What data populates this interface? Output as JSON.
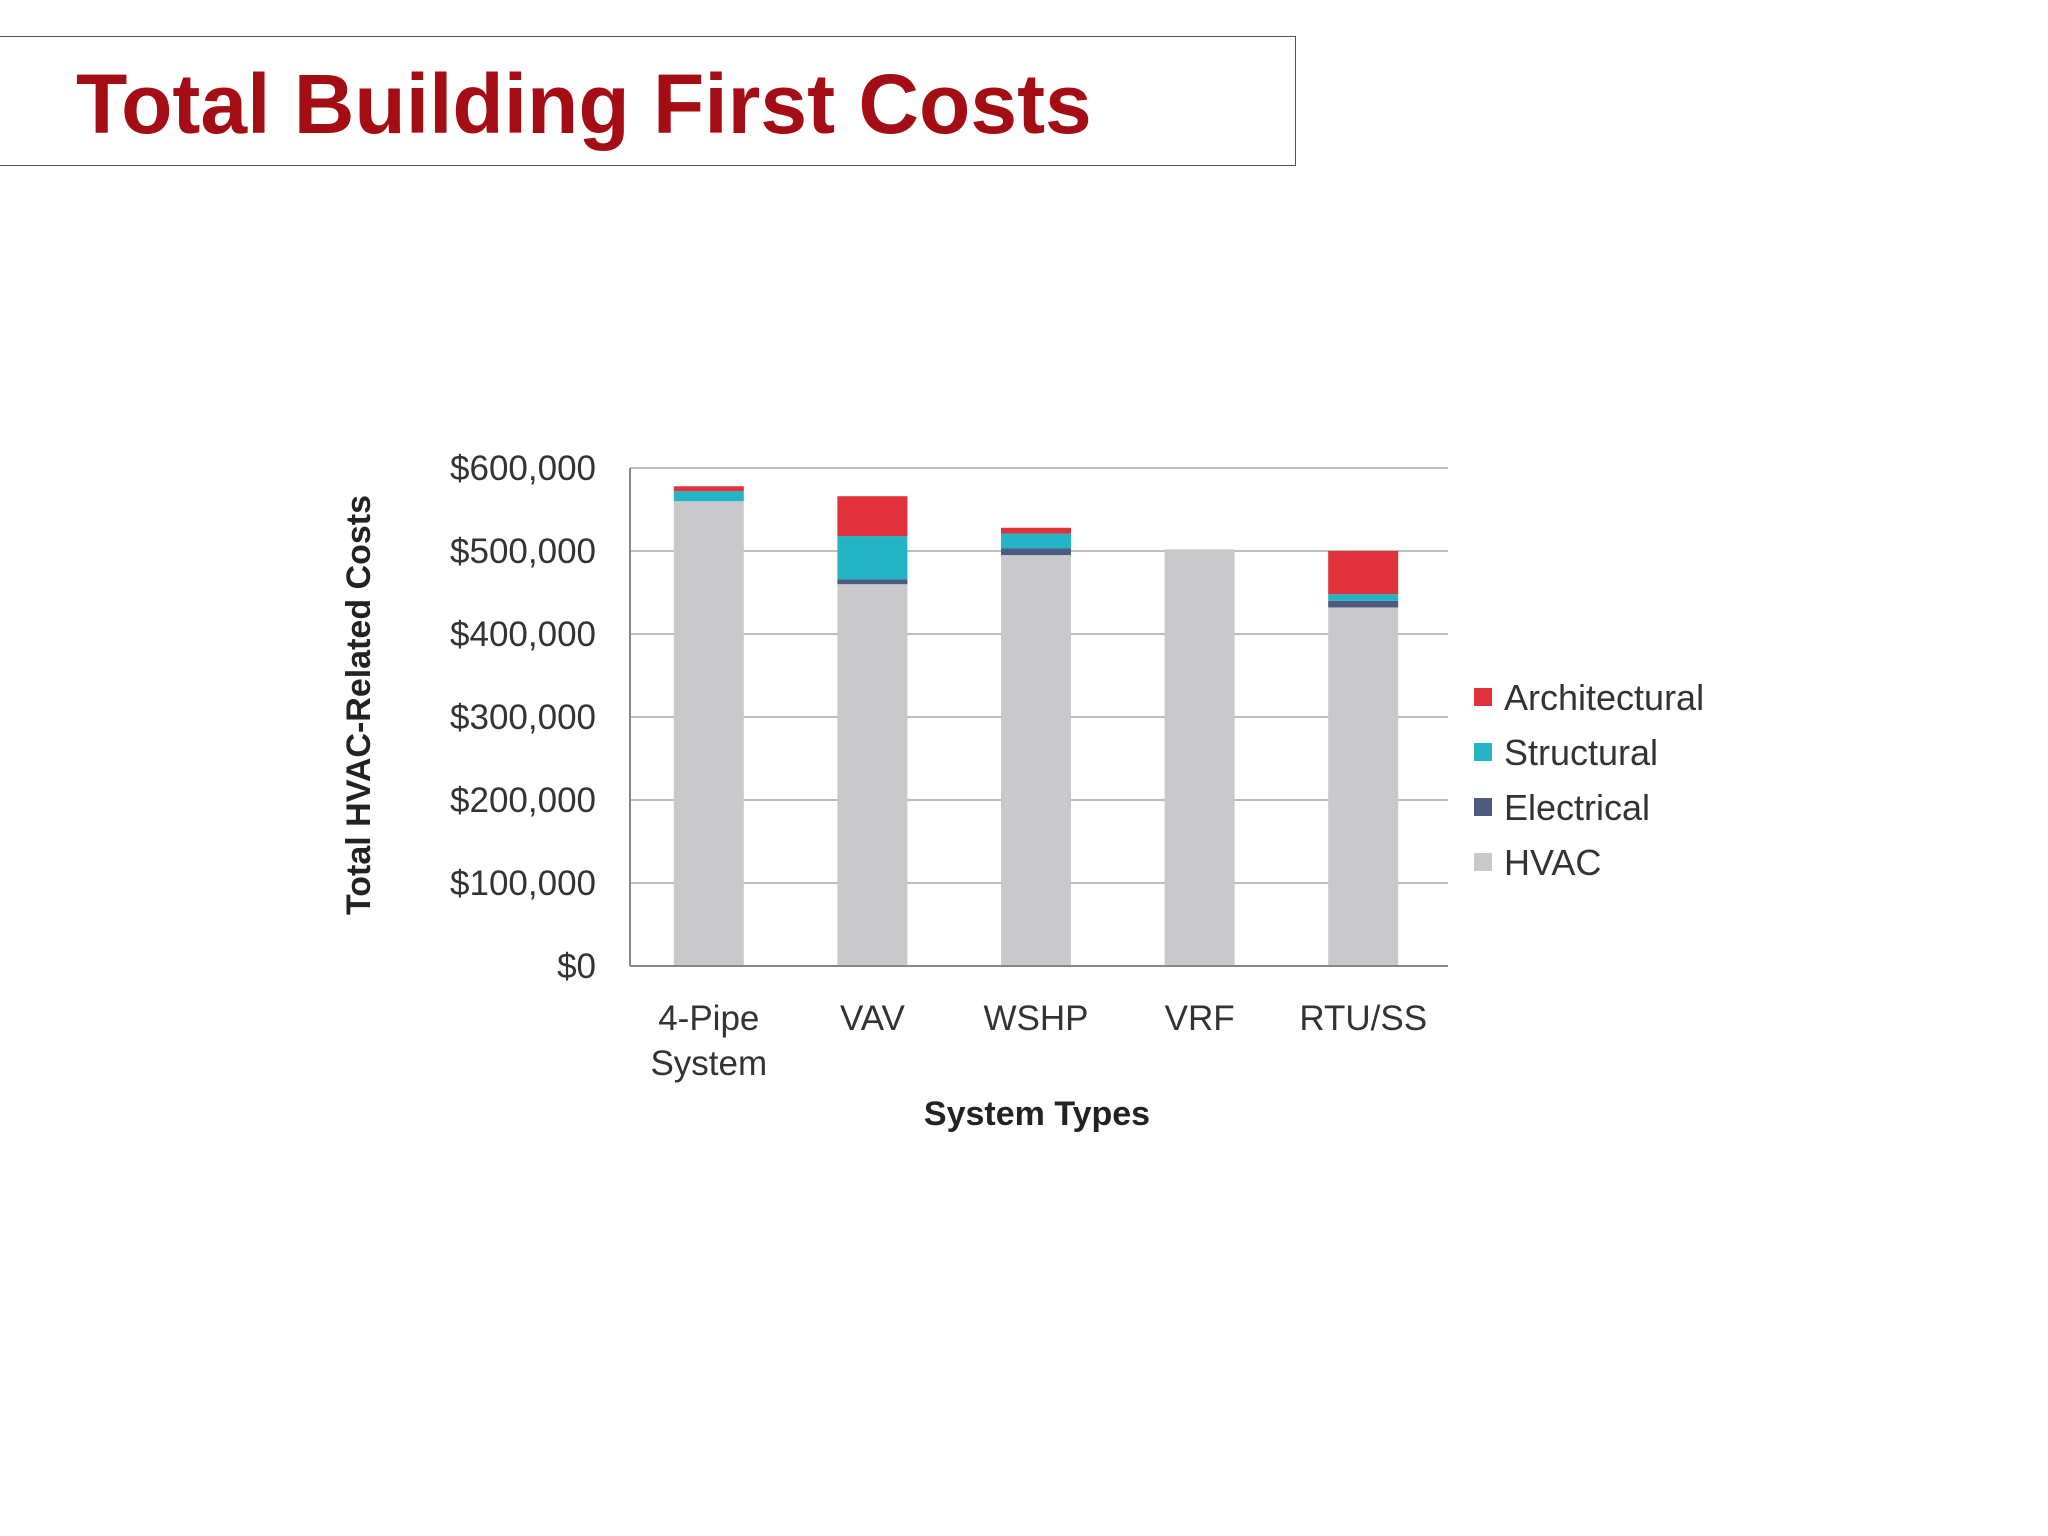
{
  "slide": {
    "title": "Total Building First Costs"
  },
  "chart_data": {
    "type": "bar",
    "stacked": true,
    "categories": [
      "4-Pipe System",
      "VAV",
      "WSHP",
      "VRF",
      "RTU/SS"
    ],
    "series": [
      {
        "name": "HVAC",
        "color": "#c9c8cb",
        "values": [
          560000,
          460000,
          495000,
          502000,
          432000
        ]
      },
      {
        "name": "Electrical",
        "color": "#4f5a80",
        "values": [
          0,
          6000,
          8000,
          0,
          8000
        ]
      },
      {
        "name": "Structural",
        "color": "#23b4c6",
        "values": [
          12000,
          52000,
          18000,
          0,
          8000
        ]
      },
      {
        "name": "Architectural",
        "color": "#e0313d",
        "values": [
          6000,
          48000,
          7000,
          0,
          52000
        ]
      }
    ],
    "legend_order": [
      "Architectural",
      "Structural",
      "Electrical",
      "HVAC"
    ],
    "ylim": [
      0,
      600000
    ],
    "yticks": [
      {
        "value": 0,
        "label": "$0"
      },
      {
        "value": 100000,
        "label": "$100,000"
      },
      {
        "value": 200000,
        "label": "$200,000"
      },
      {
        "value": 300000,
        "label": "$300,000"
      },
      {
        "value": 400000,
        "label": "$400,000"
      },
      {
        "value": 500000,
        "label": "$500,000"
      },
      {
        "value": 600000,
        "label": "$600,000"
      }
    ],
    "xtick_lines": [
      [
        "4-Pipe",
        "System"
      ],
      [
        "VAV"
      ],
      [
        "WSHP"
      ],
      [
        "VRF"
      ],
      [
        "RTU/SS"
      ]
    ],
    "xlabel": "System Types",
    "ylabel": "Total HVAC-Related Costs",
    "grid": true,
    "legend_position": "right"
  }
}
